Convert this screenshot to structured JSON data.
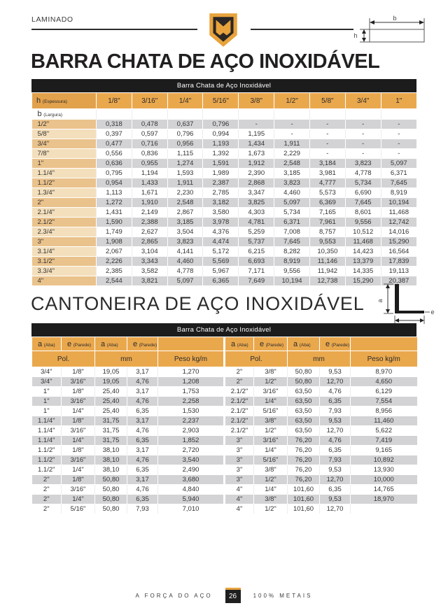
{
  "header": {
    "category_label": "LAMINADO",
    "bar_diagram": {
      "width_label": "b",
      "height_label": "h"
    }
  },
  "barra_chata": {
    "title": "BARRA CHATA DE AÇO INOXIDÁVEL",
    "table_caption": "Barra Chata de Aço Inoxidável",
    "col_header": {
      "symbol": "h",
      "sub": "(Espessura)"
    },
    "row_header": {
      "symbol": "b",
      "sub": "(Largura)"
    },
    "columns": [
      "1/8\"",
      "3/16\"",
      "1/4\"",
      "5/16\"",
      "3/8\"",
      "1/2\"",
      "5/8\"",
      "3/4\"",
      "1\""
    ],
    "rows": [
      {
        "label": "1/2\"",
        "values": [
          "0,318",
          "0,478",
          "0,637",
          "0,796",
          "-",
          "-",
          "-",
          "-",
          "-"
        ]
      },
      {
        "label": "5/8\"",
        "values": [
          "0,397",
          "0,597",
          "0,796",
          "0,994",
          "1,195",
          "-",
          "-",
          "-",
          "-"
        ]
      },
      {
        "label": "3/4\"",
        "values": [
          "0,477",
          "0,716",
          "0,956",
          "1,193",
          "1,434",
          "1,911",
          "-",
          "-",
          "-"
        ]
      },
      {
        "label": "7/8\"",
        "values": [
          "0,556",
          "0,836",
          "1,115",
          "1,392",
          "1,673",
          "2,229",
          "-",
          "-",
          "-"
        ]
      },
      {
        "label": "1\"",
        "values": [
          "0,636",
          "0,955",
          "1,274",
          "1,591",
          "1,912",
          "2,548",
          "3,184",
          "3,823",
          "5,097"
        ]
      },
      {
        "label": "1.1/4\"",
        "values": [
          "0,795",
          "1,194",
          "1,593",
          "1,989",
          "2,390",
          "3,185",
          "3,981",
          "4,778",
          "6,371"
        ]
      },
      {
        "label": "1.1/2\"",
        "values": [
          "0,954",
          "1,433",
          "1,911",
          "2,387",
          "2,868",
          "3,823",
          "4,777",
          "5,734",
          "7,645"
        ]
      },
      {
        "label": "1.3/4\"",
        "values": [
          "1,113",
          "1,671",
          "2,230",
          "2,785",
          "3,347",
          "4,460",
          "5,573",
          "6,690",
          "8,919"
        ]
      },
      {
        "label": "2\"",
        "values": [
          "1,272",
          "1,910",
          "2,548",
          "3,182",
          "3,825",
          "5,097",
          "6,369",
          "7,645",
          "10,194"
        ]
      },
      {
        "label": "2.1/4\"",
        "values": [
          "1,431",
          "2,149",
          "2,867",
          "3,580",
          "4,303",
          "5,734",
          "7,165",
          "8,601",
          "11,468"
        ]
      },
      {
        "label": "2.1/2\"",
        "values": [
          "1,590",
          "2,388",
          "3,185",
          "3,978",
          "4,781",
          "6,371",
          "7,961",
          "9,556",
          "12,742"
        ]
      },
      {
        "label": "2.3/4\"",
        "values": [
          "1,749",
          "2,627",
          "3,504",
          "4,376",
          "5,259",
          "7,008",
          "8,757",
          "10,512",
          "14,016"
        ]
      },
      {
        "label": "3\"",
        "values": [
          "1,908",
          "2,865",
          "3,823",
          "4,474",
          "5,737",
          "7,645",
          "9,553",
          "11,468",
          "15,290"
        ]
      },
      {
        "label": "3.1/4\"",
        "values": [
          "2,067",
          "3,104",
          "4,141",
          "5,172",
          "6,215",
          "8,282",
          "10,350",
          "14,423",
          "16,564"
        ]
      },
      {
        "label": "3.1/2\"",
        "values": [
          "2,226",
          "3,343",
          "4,460",
          "5,569",
          "6,693",
          "8,919",
          "11,146",
          "13,379",
          "17,839"
        ]
      },
      {
        "label": "3.3/4\"",
        "values": [
          "2,385",
          "3,582",
          "4,778",
          "5,967",
          "7,171",
          "9,556",
          "11,942",
          "14,335",
          "19,113"
        ]
      },
      {
        "label": "4\"",
        "values": [
          "2,544",
          "3,821",
          "5,097",
          "6,365",
          "7,649",
          "10,194",
          "12,738",
          "15,290",
          "20,387"
        ]
      }
    ]
  },
  "cantoneira": {
    "title": "CANTONEIRA DE AÇO INOXIDÁVEL",
    "table_caption": "Barra Chata de Aço Inoxidável",
    "diagram": {
      "leg_label": "a",
      "thickness_label": "e"
    },
    "header": {
      "a": "a",
      "a_sub": "(Aba)",
      "e": "e",
      "e_sub": "(Parede)",
      "pol": "Pol.",
      "mm": "mm",
      "peso": "Peso kg/m"
    },
    "left_rows": [
      [
        "3/4\"",
        "1/8\"",
        "19,05",
        "3,17",
        "1,270"
      ],
      [
        "3/4\"",
        "3/16\"",
        "19,05",
        "4,76",
        "1,208"
      ],
      [
        "1\"",
        "1/8\"",
        "25,40",
        "3,17",
        "1,753"
      ],
      [
        "1\"",
        "3/16\"",
        "25,40",
        "4,76",
        "2,258"
      ],
      [
        "1\"",
        "1/4\"",
        "25,40",
        "6,35",
        "1,530"
      ],
      [
        "1.1/4\"",
        "1/8\"",
        "31,75",
        "3,17",
        "2,237"
      ],
      [
        "1.1/4\"",
        "3/16\"",
        "31,75",
        "4,76",
        "2,903"
      ],
      [
        "1.1/4\"",
        "1/4\"",
        "31,75",
        "6,35",
        "1,852"
      ],
      [
        "1.1/2\"",
        "1/8\"",
        "38,10",
        "3,17",
        "2,720"
      ],
      [
        "1.1/2\"",
        "3/16\"",
        "38,10",
        "4,76",
        "3,540"
      ],
      [
        "1.1/2\"",
        "1/4\"",
        "38,10",
        "6,35",
        "2,490"
      ],
      [
        "2\"",
        "1/8\"",
        "50,80",
        "3,17",
        "3,680"
      ],
      [
        "2\"",
        "3/16\"",
        "50,80",
        "4,76",
        "4,840"
      ],
      [
        "2\"",
        "1/4\"",
        "50,80",
        "6,35",
        "5,940"
      ],
      [
        "2\"",
        "5/16\"",
        "50,80",
        "7,93",
        "7,010"
      ]
    ],
    "right_rows": [
      [
        "2\"",
        "3/8\"",
        "50,80",
        "9,53",
        "8,970"
      ],
      [
        "2\"",
        "1/2\"",
        "50,80",
        "12,70",
        "4,650"
      ],
      [
        "2.1/2\"",
        "3/16\"",
        "63,50",
        "4,76",
        "6,129"
      ],
      [
        "2.1/2\"",
        "1/4\"",
        "63,50",
        "6,35",
        "7,554"
      ],
      [
        "2.1/2\"",
        "5/16\"",
        "63,50",
        "7,93",
        "8,956"
      ],
      [
        "2.1/2\"",
        "3/8\"",
        "63,50",
        "9,53",
        "11,460"
      ],
      [
        "2.1/2\"",
        "1/2\"",
        "63,50",
        "12,70",
        "5,622"
      ],
      [
        "3\"",
        "3/16\"",
        "76,20",
        "4,76",
        "7,419"
      ],
      [
        "3\"",
        "1/4\"",
        "76,20",
        "6,35",
        "9,165"
      ],
      [
        "3\"",
        "5/16\"",
        "76,20",
        "7,93",
        "10,892"
      ],
      [
        "3\"",
        "3/8\"",
        "76,20",
        "9,53",
        "13,930"
      ],
      [
        "3\"",
        "1/2\"",
        "76,20",
        "12,70",
        "10,000"
      ],
      [
        "4\"",
        "1/4\"",
        "101,60",
        "6,35",
        "14,765"
      ],
      [
        "4\"",
        "3/8\"",
        "101,60",
        "9,53",
        "18,970"
      ],
      [
        "4\"",
        "1/2\"",
        "101,60",
        "12,70",
        ""
      ]
    ]
  },
  "footer": {
    "tagline": "A FORÇA DO AÇO",
    "page_number": "26",
    "brand": "100% METAIS"
  },
  "colors": {
    "accent_gold": "#E8A33D",
    "header_orange": "#EAA84D",
    "corner_orange": "#E2A14B",
    "black_bar": "#1C1C1C",
    "row_gray": "#D3D3D5",
    "label_tan_light": "#F4DFBC",
    "label_tan_dark": "#EAC28B"
  }
}
